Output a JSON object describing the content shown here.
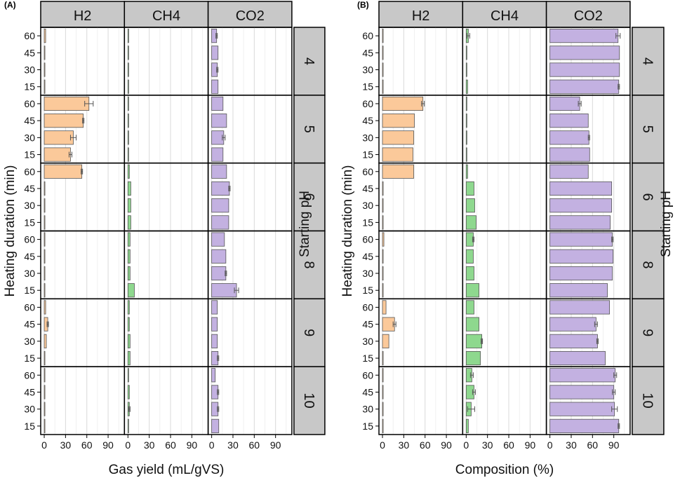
{
  "figure": {
    "colors": {
      "H2": "#fbc99a",
      "CH4": "#8ed88e",
      "CO2": "#c3b1e1",
      "strip": "#c8c8c8"
    }
  },
  "chart_data": [
    {
      "type": "bar",
      "panel_label": "(A)",
      "xlabel": "Gas yield (mL/gVS)",
      "ylabel": "Heating duration (min)",
      "facet_row_title": "Starting pH",
      "facets_col": [
        "H2",
        "CH4",
        "CO2"
      ],
      "facets_row": [
        "4",
        "5",
        "6",
        "8",
        "9",
        "10"
      ],
      "categories": [
        "60",
        "45",
        "30",
        "15"
      ],
      "xlim": [
        -2,
        110
      ],
      "xticks": [
        0,
        30,
        60,
        90
      ],
      "groups": [
        {
          "pH": "4",
          "H2": [
            2,
            1,
            1,
            1
          ],
          "CH4": [
            1,
            1,
            1,
            1
          ],
          "CO2": [
            7,
            9,
            8,
            9
          ],
          "H2_err": [
            0,
            0,
            0,
            0
          ],
          "CH4_err": [
            0,
            0,
            0,
            0
          ],
          "CO2_err": [
            1,
            0,
            1,
            0
          ]
        },
        {
          "pH": "5",
          "H2": [
            63,
            55,
            41,
            37
          ],
          "CH4": [
            1,
            1,
            1,
            1
          ],
          "CO2": [
            16,
            21,
            17,
            16
          ],
          "H2_err": [
            6,
            1,
            4,
            2
          ],
          "CH4_err": [
            0,
            0,
            0,
            0
          ],
          "CO2_err": [
            0,
            0,
            2,
            0
          ]
        },
        {
          "pH": "6",
          "H2": [
            53,
            1,
            1,
            1
          ],
          "CH4": [
            2,
            4,
            4,
            4
          ],
          "CO2": [
            21,
            25,
            24,
            24
          ],
          "H2_err": [
            1,
            0,
            0,
            0
          ],
          "CH4_err": [
            0,
            0,
            0,
            0
          ],
          "CO2_err": [
            0,
            1,
            0,
            0
          ]
        },
        {
          "pH": "8",
          "H2": [
            1,
            1,
            1,
            1
          ],
          "CH4": [
            3,
            3,
            3,
            9
          ],
          "CO2": [
            18,
            20,
            20,
            35
          ],
          "H2_err": [
            0,
            0,
            0,
            0
          ],
          "CH4_err": [
            0,
            0,
            0,
            0
          ],
          "CO2_err": [
            0,
            0,
            1,
            3
          ]
        },
        {
          "pH": "9",
          "H2": [
            2,
            5,
            3,
            1
          ],
          "CH4": [
            2,
            2,
            3,
            3
          ],
          "CO2": [
            8,
            8,
            8,
            9
          ],
          "H2_err": [
            0,
            1,
            0,
            0
          ],
          "CH4_err": [
            0,
            0,
            0,
            0
          ],
          "CO2_err": [
            0,
            0,
            0,
            1
          ]
        },
        {
          "pH": "10",
          "H2": [
            1,
            1,
            1,
            1
          ],
          "CH4": [
            1,
            2,
            2,
            1
          ],
          "CO2": [
            5,
            9,
            9,
            10
          ],
          "H2_err": [
            0,
            0,
            0,
            0
          ],
          "CH4_err": [
            0,
            0,
            1,
            0
          ],
          "CO2_err": [
            0,
            1,
            1,
            0
          ]
        }
      ]
    },
    {
      "type": "bar",
      "panel_label": "(B)",
      "xlabel": "Composition (%)",
      "ylabel": "Heating duration (min)",
      "facet_row_title": "Starting pH",
      "facets_col": [
        "H2",
        "CH4",
        "CO2"
      ],
      "facets_row": [
        "4",
        "5",
        "6",
        "8",
        "9",
        "10"
      ],
      "categories": [
        "60",
        "45",
        "30",
        "15"
      ],
      "xlim": [
        -2,
        110
      ],
      "xticks": [
        0,
        30,
        60,
        90
      ],
      "groups": [
        {
          "pH": "4",
          "H2": [
            1,
            1,
            1,
            1
          ],
          "CH4": [
            3,
            1,
            1,
            2
          ],
          "CO2": [
            96,
            98,
            98,
            97
          ],
          "H2_err": [
            0,
            0,
            0,
            0
          ],
          "CH4_err": [
            2,
            0,
            0,
            0
          ],
          "CO2_err": [
            3,
            0,
            0,
            1
          ]
        },
        {
          "pH": "5",
          "H2": [
            57,
            45,
            44,
            43
          ],
          "CH4": [
            1,
            1,
            1,
            1
          ],
          "CO2": [
            42,
            54,
            55,
            56
          ],
          "H2_err": [
            2,
            0,
            0,
            0
          ],
          "CH4_err": [
            0,
            0,
            0,
            0
          ],
          "CO2_err": [
            2,
            0,
            1,
            0
          ]
        },
        {
          "pH": "6",
          "H2": [
            44,
            1,
            1,
            1
          ],
          "CH4": [
            2,
            11,
            12,
            14
          ],
          "CO2": [
            54,
            87,
            87,
            85
          ],
          "H2_err": [
            0,
            0,
            0,
            0
          ],
          "CH4_err": [
            0,
            0,
            0,
            0
          ],
          "CO2_err": [
            0,
            0,
            0,
            0
          ]
        },
        {
          "pH": "8",
          "H2": [
            2,
            1,
            1,
            1
          ],
          "CH4": [
            10,
            10,
            11,
            18
          ],
          "CO2": [
            88,
            89,
            88,
            81
          ],
          "H2_err": [
            0,
            0,
            0,
            0
          ],
          "CH4_err": [
            1,
            0,
            0,
            0
          ],
          "CO2_err": [
            1,
            0,
            0,
            0
          ]
        },
        {
          "pH": "9",
          "H2": [
            5,
            17,
            9,
            1
          ],
          "CH4": [
            11,
            18,
            22,
            20
          ],
          "CO2": [
            84,
            65,
            67,
            78
          ],
          "H2_err": [
            0,
            2,
            0,
            0
          ],
          "CH4_err": [
            0,
            0,
            1,
            0
          ],
          "CO2_err": [
            0,
            2,
            1,
            0
          ]
        },
        {
          "pH": "10",
          "H2": [
            1,
            1,
            1,
            1
          ],
          "CH4": [
            8,
            11,
            7,
            3
          ],
          "CO2": [
            92,
            90,
            91,
            97
          ],
          "H2_err": [
            0,
            0,
            0,
            0
          ],
          "CH4_err": [
            2,
            2,
            5,
            0
          ],
          "CO2_err": [
            2,
            2,
            4,
            1
          ]
        }
      ]
    }
  ]
}
